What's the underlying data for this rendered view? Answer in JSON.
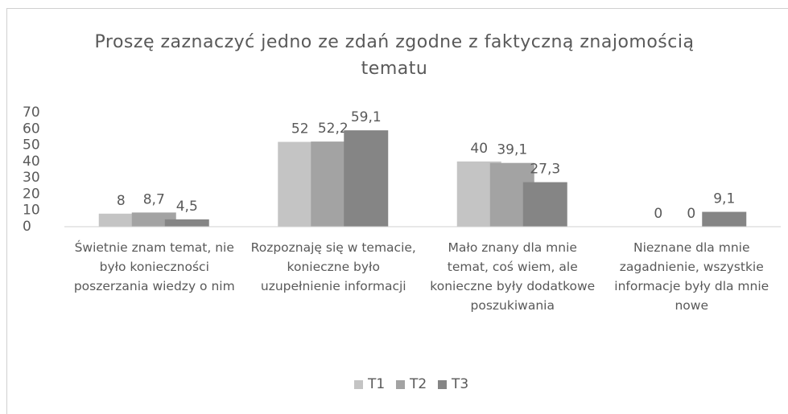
{
  "chart_data": {
    "type": "bar",
    "title": "Proszę zaznaczyć jedno ze zdań zgodne z faktyczną znajomością tematu",
    "categories": [
      "Świetnie znam temat, nie było konieczności poszerzania wiedzy o nim",
      "Rozpoznaję się w temacie, konieczne było uzupełnienie informacji",
      "Mało znany dla mnie temat, coś wiem, ale konieczne były dodatkowe poszukiwania",
      "Nieznane dla mnie zagadnienie, wszystkie informacje były dla mnie nowe"
    ],
    "series": [
      {
        "name": "T1",
        "color": "#c4c4c4",
        "values": [
          8,
          52,
          40,
          0
        ],
        "value_labels": [
          "8",
          "52",
          "40",
          "0"
        ]
      },
      {
        "name": "T2",
        "color": "#a3a3a3",
        "values": [
          8.7,
          52.2,
          39.1,
          0
        ],
        "value_labels": [
          "8,7",
          "52,2",
          "39,1",
          "0"
        ]
      },
      {
        "name": "T3",
        "color": "#858585",
        "values": [
          4.5,
          59.1,
          27.3,
          9.1
        ],
        "value_labels": [
          "4,5",
          "59,1",
          "27,3",
          "9,1"
        ]
      }
    ],
    "ylim": [
      0,
      70
    ],
    "yticks": [
      0,
      10,
      20,
      30,
      40,
      50,
      60,
      70
    ],
    "grid": false,
    "legend": "bottom"
  }
}
